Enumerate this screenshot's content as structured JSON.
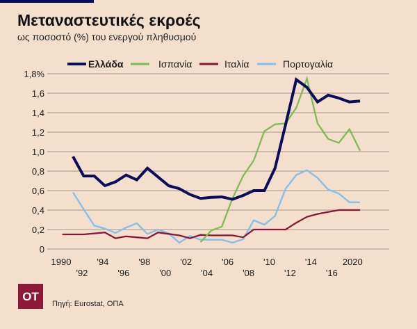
{
  "header": {
    "title": "Μεταναστευτικές εκροές",
    "subtitle": "ως ποσοστό (%) του ενεργού πληθυσμού"
  },
  "footer": {
    "source": "Πηγή: Eurostat, ΟΠΑ",
    "logo_text": "ΟΤ",
    "logo_color": "#8c1a36"
  },
  "chart_data": {
    "type": "line",
    "title": "Μεταναστευτικές εκροές",
    "subtitle": "ως ποσοστό (%) του ενεργού πληθυσμού",
    "xlabel": "",
    "ylabel": "",
    "ylim": [
      0,
      1.8
    ],
    "yticks": [
      "0",
      "0,2",
      "0,4",
      "0,6",
      "0,8",
      "1,0",
      "1,2",
      "1,4",
      "1,6",
      "1,8%"
    ],
    "xticklabels": [
      "1990",
      "'92",
      "'94",
      "'96",
      "'98",
      "'00",
      "'02",
      "'04",
      "'06",
      "'08",
      "'10",
      "'12",
      "'14",
      "'16",
      "2020"
    ],
    "grid": "horizontal",
    "legend": "top",
    "series": [
      {
        "name": "Ελλάδα",
        "color": "#0c0c5c",
        "bold": true,
        "x": [
          1991,
          1992,
          1993,
          1994,
          1995,
          1996,
          1997,
          1998,
          1999,
          2000,
          2001,
          2002,
          2003,
          2004,
          2005,
          2006,
          2007,
          2008,
          2009,
          2010,
          2011,
          2012,
          2013,
          2014,
          2015,
          2016,
          2017,
          2018
        ],
        "values": [
          0.95,
          0.75,
          0.75,
          0.65,
          0.69,
          0.76,
          0.71,
          0.83,
          0.74,
          0.65,
          0.62,
          0.56,
          0.52,
          0.53,
          0.535,
          0.51,
          0.55,
          0.6,
          0.6,
          0.83,
          1.28,
          1.74,
          1.66,
          1.51,
          1.58,
          1.55,
          1.51,
          1.52
        ]
      },
      {
        "name": "Ισπανία",
        "color": "#7dbb55",
        "x": [
          2003,
          2004,
          2005,
          2006,
          2007,
          2008,
          2009,
          2010,
          2011,
          2012,
          2013,
          2014,
          2015,
          2016,
          2017,
          2018
        ],
        "values": [
          0.07,
          0.19,
          0.23,
          0.52,
          0.75,
          0.91,
          1.21,
          1.28,
          1.29,
          1.45,
          1.75,
          1.29,
          1.13,
          1.09,
          1.23,
          1.01
        ]
      },
      {
        "name": "Ιταλία",
        "color": "#8b1538",
        "x": [
          1990,
          1991,
          1992,
          1993,
          1994,
          1995,
          1996,
          1997,
          1998,
          1999,
          2000,
          2001,
          2002,
          2003,
          2004,
          2005,
          2006,
          2007,
          2008,
          2009,
          2010,
          2011,
          2012,
          2013,
          2014,
          2015,
          2016,
          2017,
          2018
        ],
        "values": [
          0.15,
          0.15,
          0.15,
          0.16,
          0.17,
          0.11,
          0.13,
          0.12,
          0.11,
          0.17,
          0.155,
          0.14,
          0.11,
          0.145,
          0.14,
          0.14,
          0.14,
          0.12,
          0.2,
          0.2,
          0.2,
          0.2,
          0.27,
          0.33,
          0.36,
          0.38,
          0.4,
          0.4,
          0.4
        ]
      },
      {
        "name": "Πορτογαλία",
        "color": "#80c0ea",
        "x": [
          1991,
          1992,
          1993,
          1994,
          1995,
          1996,
          1997,
          1998,
          1999,
          2000,
          2001,
          2002,
          2003,
          2004,
          2005,
          2006,
          2007,
          2008,
          2009,
          2010,
          2011,
          2012,
          2013,
          2014,
          2015,
          2016,
          2017,
          2018
        ],
        "values": [
          0.58,
          0.41,
          0.24,
          0.21,
          0.165,
          0.22,
          0.265,
          0.155,
          0.2,
          0.16,
          0.065,
          0.135,
          0.095,
          0.095,
          0.095,
          0.065,
          0.1,
          0.295,
          0.25,
          0.34,
          0.62,
          0.76,
          0.81,
          0.73,
          0.61,
          0.57,
          0.48,
          0.48
        ]
      }
    ]
  }
}
